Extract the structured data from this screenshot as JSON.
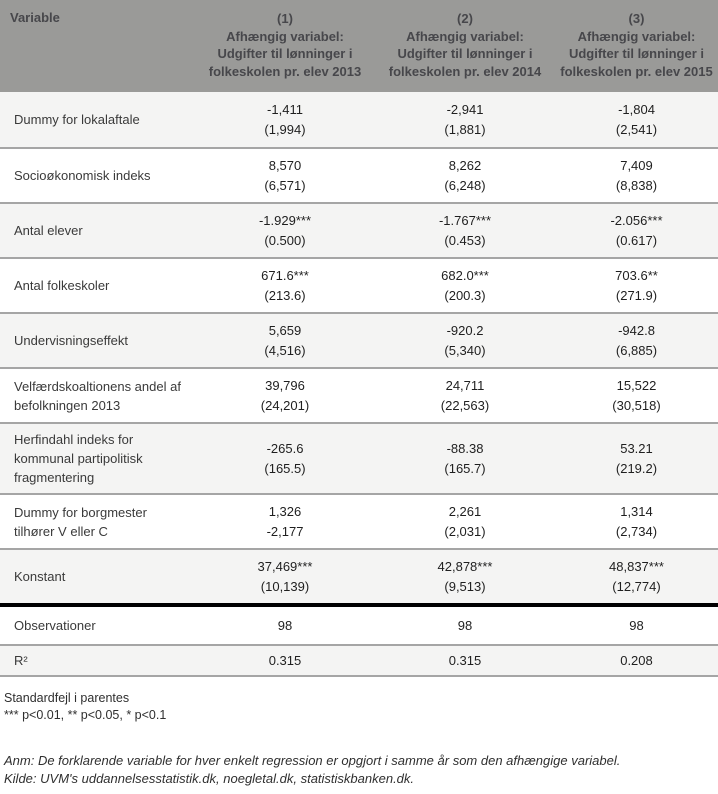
{
  "header": {
    "variable_label": "Variable",
    "columns": [
      {
        "number": "(1)",
        "lines": [
          "Afhængig variabel:",
          "Udgifter til lønninger i",
          "folkeskolen pr. elev 2013"
        ]
      },
      {
        "number": "(2)",
        "lines": [
          "Afhængig variabel:",
          "Udgifter til lønninger i",
          "folkeskolen pr. elev 2014"
        ]
      },
      {
        "number": "(3)",
        "lines": [
          "Afhængig variabel:",
          "Udgifter til lønninger i",
          "folkeskolen pr. elev 2015"
        ]
      }
    ]
  },
  "table": {
    "rows": [
      {
        "label": "Dummy for lokalaftale",
        "cells": [
          [
            "-1,411",
            "(1,994)"
          ],
          [
            "-2,941",
            "(1,881)"
          ],
          [
            "-1,804",
            "(2,541)"
          ]
        ]
      },
      {
        "label": "Socioøkonomisk indeks",
        "cells": [
          [
            "8,570",
            "(6,571)"
          ],
          [
            "8,262",
            "(6,248)"
          ],
          [
            "7,409",
            "(8,838)"
          ]
        ]
      },
      {
        "label": "Antal elever",
        "cells": [
          [
            "-1.929***",
            "(0.500)"
          ],
          [
            "-1.767***",
            "(0.453)"
          ],
          [
            "-2.056***",
            "(0.617)"
          ]
        ]
      },
      {
        "label": "Antal folkeskoler",
        "cells": [
          [
            "671.6***",
            "(213.6)"
          ],
          [
            "682.0***",
            "(200.3)"
          ],
          [
            "703.6**",
            "(271.9)"
          ]
        ]
      },
      {
        "label": "Undervisningseffekt",
        "cells": [
          [
            "5,659",
            "(4,516)"
          ],
          [
            "-920.2",
            "(5,340)"
          ],
          [
            "-942.8",
            "(6,885)"
          ]
        ]
      },
      {
        "label": "Velfærdskoaltionens andel af befolkningen 2013",
        "cells": [
          [
            "39,796",
            "(24,201)"
          ],
          [
            "24,711",
            "(22,563)"
          ],
          [
            "15,522",
            "(30,518)"
          ]
        ]
      },
      {
        "label": "Herfindahl indeks for kommunal partipolitisk fragmentering",
        "cells": [
          [
            "-265.6",
            "(165.5)"
          ],
          [
            "-88.38",
            "(165.7)"
          ],
          [
            "53.21",
            "(219.2)"
          ]
        ]
      },
      {
        "label": "Dummy for borgmester tilhører V eller C",
        "cells": [
          [
            "1,326",
            "-2,177"
          ],
          [
            "2,261",
            "(2,031)"
          ],
          [
            "1,314",
            "(2,734)"
          ]
        ]
      },
      {
        "label": "Konstant",
        "cells": [
          [
            "37,469***",
            "(10,139)"
          ],
          [
            "42,878***",
            "(9,513)"
          ],
          [
            "48,837***",
            "(12,774)"
          ]
        ]
      }
    ],
    "summary_rows": [
      {
        "label": "Observationer",
        "values": [
          "98",
          "98",
          "98"
        ]
      },
      {
        "label": "R²",
        "values": [
          "0.315",
          "0.315",
          "0.208"
        ]
      }
    ]
  },
  "footer": {
    "se_note": "Standardfejl i parentes",
    "significance_note": "*** p<0.01, ** p<0.05, * p<0.1",
    "anm_note": "Anm: De forklarende variable for hver enkelt regression er opgjort i samme år som den afhængige variabel.",
    "kilde_note": "Kilde: UVM's uddannelsesstatistik.dk, noegletal.dk, statistiskbanken.dk."
  },
  "colors": {
    "header_background": "#9a9a98",
    "header_text": "#47474b",
    "stripe_background": "#f4f4f3",
    "row_divider": "#a5a5a5",
    "summary_divider_thick": "#000000",
    "body_text": "#1f1f1f"
  }
}
